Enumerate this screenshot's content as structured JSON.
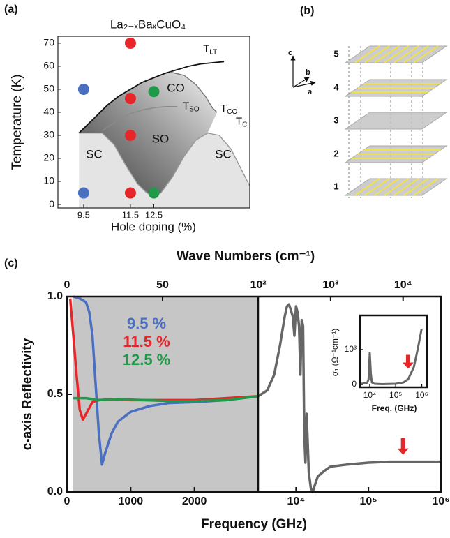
{
  "chart_data": [
    {
      "type": "scatter",
      "panel_label": "(a)",
      "title": "La₂₋ₓBaₓCuO₄",
      "xlabel": "Hole doping (%)",
      "ylabel": "Temperature (K)",
      "xlim": [
        8.4,
        16.6
      ],
      "ylim": [
        -1.5,
        73
      ],
      "xticks": [
        9.5,
        11.5,
        12.5
      ],
      "yticks": [
        0,
        10,
        20,
        30,
        40,
        50,
        60,
        70
      ],
      "series": [
        {
          "color": "#4a6fc0",
          "x": [
            9.5,
            9.5
          ],
          "values": [
            50,
            5
          ]
        },
        {
          "color": "#e8262a",
          "x": [
            11.5,
            11.5,
            11.5,
            11.5
          ],
          "values": [
            70,
            46,
            30,
            5
          ]
        },
        {
          "color": "#1f9a48",
          "x": [
            12.5,
            12.5
          ],
          "values": [
            49,
            5
          ]
        }
      ],
      "curves": [
        {
          "label": [
            "T",
            "LT"
          ],
          "color": "#111111",
          "x": [
            9.3,
            10,
            10.5,
            11,
            11.5,
            12,
            12.5,
            13,
            13.5,
            14,
            14.5,
            15,
            15.5
          ],
          "values": [
            31,
            38,
            43,
            47,
            50,
            53,
            55,
            57,
            58.5,
            60,
            61,
            61.5,
            62
          ]
        },
        {
          "label": [
            "T",
            "CO"
          ],
          "color": "#777777",
          "x": [
            13.2,
            13.8,
            14.3,
            14.7,
            15.0,
            15.2
          ],
          "values": [
            57.5,
            56,
            52,
            47,
            42,
            40
          ]
        },
        {
          "label": [
            "T",
            "SO"
          ],
          "color": "#8a8a8a",
          "x": [
            10.3,
            11,
            11.5,
            12,
            12.5,
            13,
            13.5
          ],
          "values": [
            32,
            37,
            39.5,
            41,
            42,
            42.5,
            42.5
          ]
        },
        {
          "label": [
            "T",
            "C"
          ],
          "color": "#999999",
          "x": [
            9.3,
            10.3,
            10.8,
            11.3,
            11.8,
            12.2,
            12.5,
            12.8,
            13.3,
            13.8,
            14.3,
            14.8,
            15.3,
            15.8,
            16.3,
            16.6
          ],
          "values": [
            31,
            31,
            26,
            17,
            9,
            5,
            4,
            5,
            12,
            21,
            28,
            31,
            30,
            24,
            14,
            8
          ]
        }
      ],
      "regions": [
        "SC",
        "SO",
        "CO",
        "SC"
      ]
    },
    {
      "type": "line",
      "panel_label": "(c)",
      "xlabel": "Frequency (GHz)",
      "ylabel": "c-axis Reflectivity",
      "x2label": "Wave Numbers (cm⁻¹)",
      "xlim": [
        0,
        3000
      ],
      "xloglim": [
        3000,
        1000000
      ],
      "x2lim": [
        0,
        100
      ],
      "x2loglim": [
        100,
        33333
      ],
      "ylim": [
        0,
        1
      ],
      "xticks": [
        0,
        1000,
        2000,
        {
          "value": 10000,
          "label": "10⁴"
        },
        {
          "value": 100000,
          "label": "10⁵"
        },
        {
          "value": 1000000,
          "label": "10⁶"
        }
      ],
      "x2ticks": [
        0,
        50,
        {
          "value": 100,
          "label": "10²"
        },
        {
          "value": 1000,
          "label": "10³"
        },
        {
          "value": 10000,
          "label": "10⁴"
        }
      ],
      "yticks": [
        {
          "value": 0,
          "label": "0.0"
        },
        {
          "value": 0.5,
          "label": "0.5"
        },
        {
          "value": 1,
          "label": "1.0"
        }
      ],
      "series": [
        {
          "name": "9.5 %",
          "color": "#4a6fc0",
          "x": [
            100,
            200,
            300,
            350,
            400,
            450,
            500,
            550,
            600,
            700,
            800,
            1000,
            1300,
            1600,
            2000,
            2500,
            3000
          ],
          "values": [
            1.0,
            0.99,
            0.97,
            0.92,
            0.8,
            0.55,
            0.3,
            0.14,
            0.2,
            0.3,
            0.36,
            0.41,
            0.44,
            0.455,
            0.46,
            0.47,
            0.49
          ]
        },
        {
          "name": "11.5 %",
          "color": "#e8262a",
          "x": [
            50,
            100,
            150,
            200,
            250,
            300,
            400,
            500,
            800,
            1000,
            1500,
            2000,
            2500,
            3000
          ],
          "values": [
            0.99,
            0.8,
            0.6,
            0.42,
            0.37,
            0.4,
            0.46,
            0.47,
            0.475,
            0.47,
            0.47,
            0.47,
            0.48,
            0.49
          ]
        },
        {
          "name": "12.5 %",
          "color": "#1f9a48",
          "x": [
            100,
            300,
            500,
            800,
            1200,
            1600,
            2000,
            2500,
            3000
          ],
          "values": [
            0.48,
            0.48,
            0.47,
            0.475,
            0.47,
            0.465,
            0.465,
            0.47,
            0.49
          ]
        },
        {
          "color": "#666666",
          "x": [
            3000,
            4000,
            5000,
            6000,
            7000,
            7500,
            8000,
            8500,
            9000,
            9500,
            10000,
            10500,
            11000,
            11500,
            12000,
            12500,
            13000,
            13500,
            14000,
            15000,
            16000,
            17000,
            18000,
            20000,
            25000,
            30000,
            50000,
            100000,
            200000,
            500000,
            1000000
          ],
          "values": [
            0.49,
            0.52,
            0.6,
            0.75,
            0.9,
            0.95,
            0.96,
            0.93,
            0.9,
            0.8,
            0.95,
            0.92,
            0.85,
            0.6,
            0.88,
            0.85,
            0.3,
            0.15,
            0.4,
            0.1,
            0.02,
            0.0,
            0.03,
            0.08,
            0.11,
            0.13,
            0.14,
            0.15,
            0.155,
            0.155,
            0.155
          ]
        }
      ],
      "arrow": {
        "x": 300000,
        "y": 0.19,
        "color": "#e8262a"
      }
    },
    {
      "type": "line",
      "xlabel": "Freq. (GHz)",
      "ylabel": "σ₁ (Ω⁻¹cm⁻¹)",
      "xlim": [
        4200,
        1600000
      ],
      "ylim": [
        -80,
        1980
      ],
      "xticks": [
        {
          "value": 10000,
          "label": "10⁴"
        },
        {
          "value": 100000,
          "label": "10⁵"
        },
        {
          "value": 1000000,
          "label": "10⁶"
        }
      ],
      "yticks": [
        0,
        {
          "value": 1000,
          "label": "10³"
        }
      ],
      "series": [
        {
          "color": "#666666",
          "x": [
            4500,
            6000,
            8000,
            9000,
            10000,
            11000,
            12000,
            15000,
            30000,
            100000,
            200000,
            300000,
            500000,
            700000,
            1000000
          ],
          "values": [
            20,
            30,
            50,
            150,
            900,
            300,
            60,
            20,
            10,
            20,
            60,
            150,
            500,
            1000,
            1600
          ]
        }
      ],
      "arrow": {
        "x": 300000,
        "y": 450,
        "color": "#e8262a"
      }
    }
  ],
  "diagram": {
    "panel_label": "(b)",
    "axes": [
      "c",
      "b",
      "a"
    ],
    "layers": [
      "5",
      "4",
      "3",
      "2",
      "1"
    ]
  }
}
